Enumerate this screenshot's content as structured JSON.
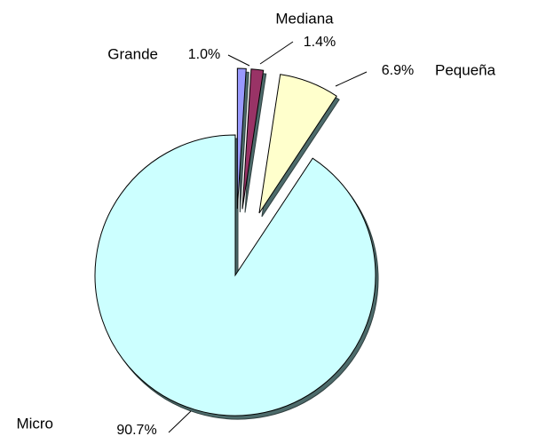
{
  "chart_data": {
    "type": "pie",
    "categories": [
      "Grande",
      "Mediana",
      "Pequeña",
      "Micro"
    ],
    "values": [
      1.0,
      1.4,
      6.9,
      90.7
    ],
    "value_labels": [
      "1.0%",
      "1.4%",
      "6.9%",
      "90.7%"
    ],
    "colors": [
      "#9999ff",
      "#993366",
      "#ffffcc",
      "#ccffff"
    ]
  }
}
